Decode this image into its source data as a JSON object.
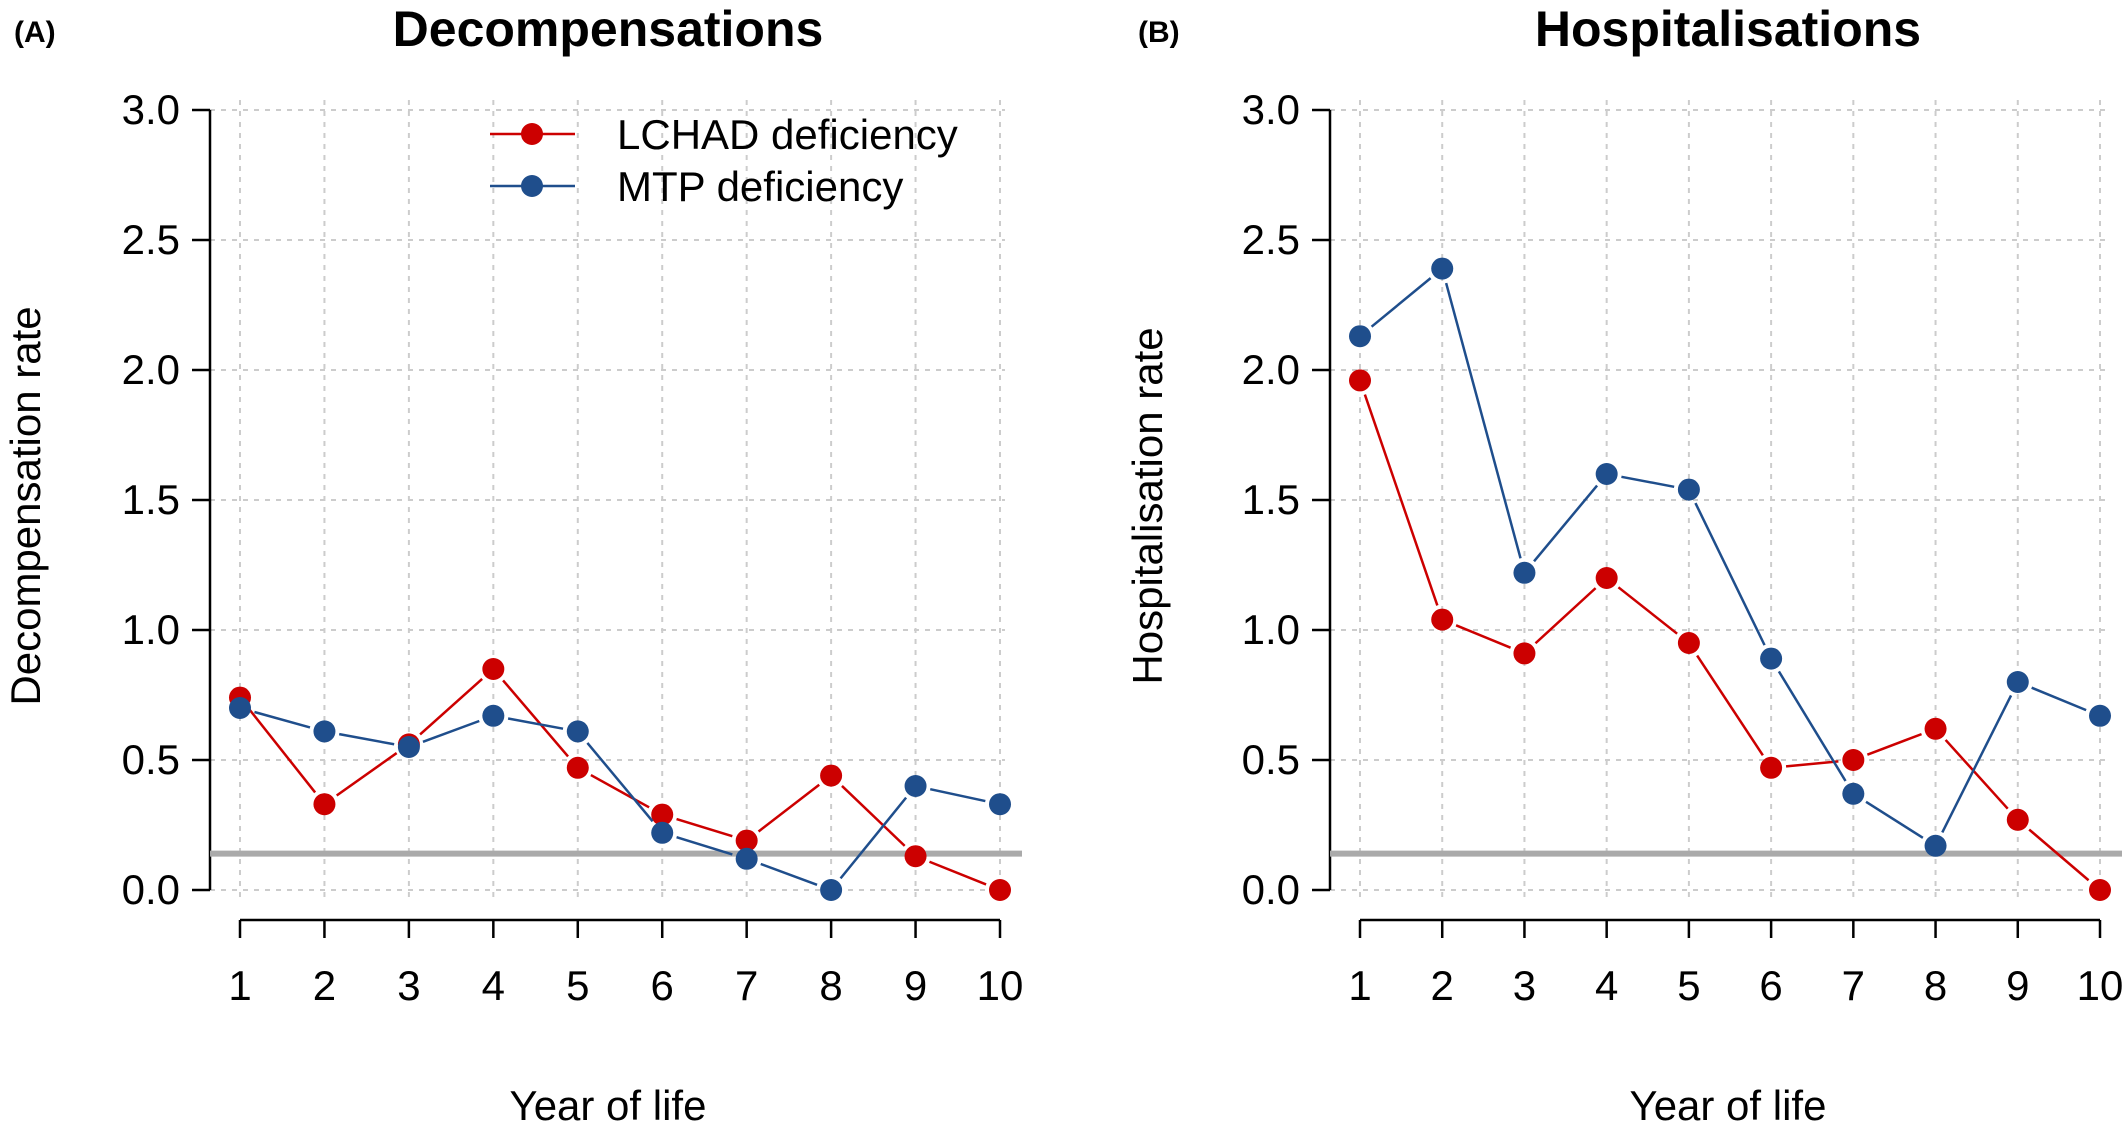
{
  "chart_data": [
    {
      "type": "line",
      "panel_label": "(A)",
      "title": "Decompensations",
      "xlabel": "Year of life",
      "ylabel": "Decompensation rate",
      "x": [
        1,
        2,
        3,
        4,
        5,
        6,
        7,
        8,
        9,
        10
      ],
      "xticks": [
        "1",
        "2",
        "3",
        "4",
        "5",
        "6",
        "7",
        "8",
        "9",
        "10"
      ],
      "yticks": [
        "0.0",
        "0.5",
        "1.0",
        "1.5",
        "2.0",
        "2.5",
        "3.0"
      ],
      "ylim": [
        0,
        3
      ],
      "reference_line": 0.14,
      "grid": true,
      "legend": {
        "position": "top-right",
        "entries": [
          "LCHAD deficiency",
          "MTP deficiency"
        ]
      },
      "series": [
        {
          "name": "LCHAD deficiency",
          "color": "#cc0000",
          "values": [
            0.74,
            0.33,
            0.56,
            0.85,
            0.47,
            0.29,
            0.19,
            0.44,
            0.13,
            0.0
          ]
        },
        {
          "name": "MTP deficiency",
          "color": "#1f4e8c",
          "values": [
            0.7,
            0.61,
            0.55,
            0.67,
            0.61,
            0.22,
            0.12,
            0.0,
            0.4,
            0.33
          ]
        }
      ]
    },
    {
      "type": "line",
      "panel_label": "(B)",
      "title": "Hospitalisations",
      "xlabel": "Year of life",
      "ylabel": "Hospitalisation rate",
      "x": [
        1,
        2,
        3,
        4,
        5,
        6,
        7,
        8,
        9,
        10
      ],
      "xticks": [
        "1",
        "2",
        "3",
        "4",
        "5",
        "6",
        "7",
        "8",
        "9",
        "10"
      ],
      "yticks": [
        "0.0",
        "0.5",
        "1.0",
        "1.5",
        "2.0",
        "2.5",
        "3.0"
      ],
      "ylim": [
        0,
        3
      ],
      "reference_line": 0.14,
      "grid": true,
      "series": [
        {
          "name": "LCHAD deficiency",
          "color": "#cc0000",
          "values": [
            1.96,
            1.04,
            0.91,
            1.2,
            0.95,
            0.47,
            0.5,
            0.62,
            0.27,
            0.0
          ]
        },
        {
          "name": "MTP deficiency",
          "color": "#1f4e8c",
          "values": [
            2.13,
            2.39,
            1.22,
            1.6,
            1.54,
            0.89,
            0.37,
            0.17,
            0.8,
            0.67
          ]
        }
      ]
    }
  ]
}
